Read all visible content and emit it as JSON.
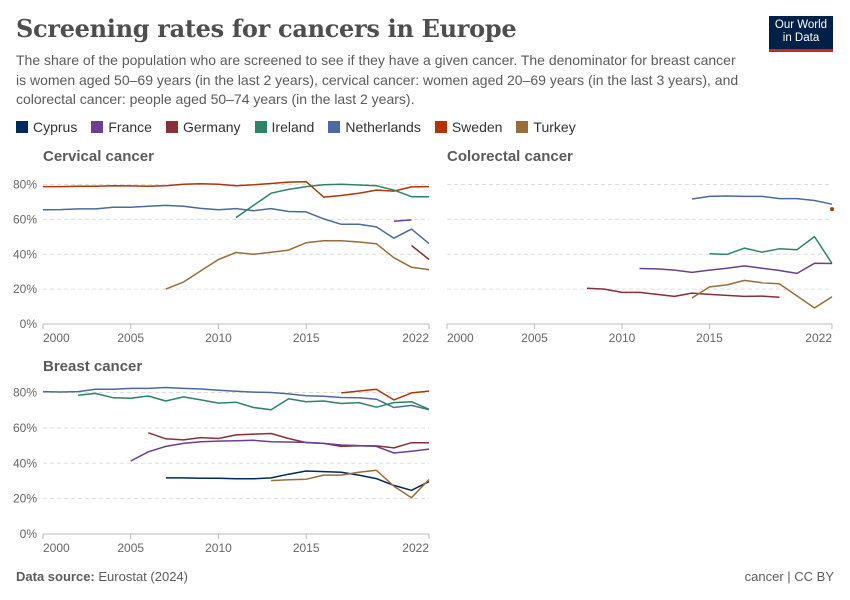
{
  "header": {
    "title": "Screening rates for cancers in Europe",
    "subtitle": "The share of the population who are screened to see if they have a given cancer. The denominator for breast cancer is women aged 50–69 years (in the last 2 years), cervical cancer: women aged 20–69 years (in the last 3 years), and colorectal cancer: people aged 50–74 years (in the last 2 years).",
    "logo": "Our World in Data"
  },
  "legend": [
    {
      "name": "Cyprus",
      "color": "#00295b"
    },
    {
      "name": "France",
      "color": "#6d3e91"
    },
    {
      "name": "Germany",
      "color": "#883039"
    },
    {
      "name": "Ireland",
      "color": "#2c8465"
    },
    {
      "name": "Netherlands",
      "color": "#4c6a9c"
    },
    {
      "name": "Sweden",
      "color": "#b13507"
    },
    {
      "name": "Turkey",
      "color": "#996d39"
    }
  ],
  "footer": {
    "source_label": "Data source:",
    "source": "Eurostat (2024)",
    "license": "cancer | CC BY"
  },
  "chart_data": [
    {
      "type": "line",
      "title": "Cervical cancer",
      "xlim": [
        2000,
        2022
      ],
      "ylim": [
        0,
        80
      ],
      "xticks": [
        "2000",
        "2005",
        "2010",
        "2015",
        "2022"
      ],
      "yticks": [
        "0%",
        "20%",
        "40%",
        "60%",
        "80%"
      ],
      "grid": true,
      "series": [
        {
          "name": "Sweden",
          "x": [
            2000,
            2001,
            2002,
            2003,
            2004,
            2005,
            2006,
            2007,
            2008,
            2009,
            2010,
            2011,
            2012,
            2013,
            2014,
            2015,
            2016,
            2017,
            2018,
            2019,
            2020,
            2021,
            2022
          ],
          "values": [
            78.8,
            78.8,
            79,
            79,
            79.3,
            79.2,
            79,
            79.3,
            80.2,
            80.4,
            80.2,
            79.3,
            79.8,
            80.6,
            81.4,
            81.6,
            72.8,
            73.7,
            75,
            76.8,
            76.2,
            78.6,
            78.8
          ]
        },
        {
          "name": "Netherlands",
          "x": [
            2000,
            2001,
            2002,
            2003,
            2004,
            2005,
            2006,
            2007,
            2008,
            2009,
            2010,
            2011,
            2012,
            2013,
            2014,
            2015,
            2016,
            2017,
            2018,
            2019,
            2020,
            2021,
            2022
          ],
          "values": [
            65.5,
            65.6,
            66,
            66,
            67,
            67,
            67.5,
            68,
            67.5,
            66.3,
            65.5,
            66.2,
            65,
            66.2,
            64.5,
            64.3,
            60.3,
            57.2,
            57.2,
            55.7,
            49.2,
            54.4,
            46.1
          ]
        },
        {
          "name": "Ireland",
          "x": [
            2011,
            2012,
            2013,
            2014,
            2015,
            2016,
            2017,
            2018,
            2019,
            2020,
            2021,
            2022
          ],
          "values": [
            61,
            68,
            75,
            77.2,
            78.8,
            79.8,
            80.2,
            79.7,
            79.3,
            76.8,
            73,
            73
          ]
        },
        {
          "name": "France",
          "x": [
            2020,
            2021
          ],
          "values": [
            58.9,
            59.7
          ]
        },
        {
          "name": "Germany",
          "x": [
            2021,
            2022
          ],
          "values": [
            45,
            37
          ]
        },
        {
          "name": "Turkey",
          "x": [
            2007,
            2008,
            2009,
            2010,
            2011,
            2012,
            2013,
            2014,
            2015,
            2016,
            2017,
            2018,
            2019,
            2020,
            2021,
            2022
          ],
          "values": [
            20,
            24,
            30.5,
            37,
            41,
            40,
            41.2,
            42.4,
            46.6,
            47.7,
            47.7,
            47,
            46,
            38,
            32.5,
            31.2
          ]
        }
      ]
    },
    {
      "type": "line",
      "title": "Colorectal cancer",
      "xlim": [
        2000,
        2022
      ],
      "ylim": [
        0,
        80
      ],
      "xticks": [
        "2000",
        "2005",
        "2010",
        "2015",
        "2022"
      ],
      "grid": true,
      "series": [
        {
          "name": "Netherlands",
          "x": [
            2014,
            2015,
            2016,
            2017,
            2018,
            2019,
            2020,
            2021,
            2022
          ],
          "values": [
            71.7,
            73.2,
            73.4,
            73.2,
            73.2,
            71.9,
            71.9,
            70.8,
            68.7
          ]
        },
        {
          "name": "Sweden",
          "x": [
            2022
          ],
          "values": [
            65.9
          ]
        },
        {
          "name": "Ireland",
          "x": [
            2015,
            2016,
            2017,
            2018,
            2019,
            2020,
            2021,
            2022
          ],
          "values": [
            40.3,
            39.9,
            43.5,
            41.2,
            43.1,
            42.6,
            50.1,
            34.7
          ]
        },
        {
          "name": "France",
          "x": [
            2011,
            2012,
            2013,
            2014,
            2015,
            2016,
            2017,
            2018,
            2019,
            2020,
            2021,
            2022
          ],
          "values": [
            31.8,
            31.6,
            30.9,
            29.6,
            30.9,
            32,
            33.3,
            32,
            30.7,
            29,
            34.8,
            34.7
          ]
        },
        {
          "name": "Germany",
          "x": [
            2008,
            2009,
            2010,
            2011,
            2012,
            2013,
            2014,
            2015,
            2016,
            2017,
            2018,
            2019
          ],
          "values": [
            20.5,
            20,
            18.1,
            18.1,
            17,
            15.8,
            17.7,
            17,
            16.4,
            15.8,
            16,
            15.3
          ]
        },
        {
          "name": "Turkey",
          "x": [
            2014,
            2015,
            2016,
            2017,
            2018,
            2019,
            2021,
            2022
          ],
          "values": [
            14.9,
            21.3,
            22.4,
            25,
            23.7,
            23,
            9.2,
            15.6
          ]
        }
      ]
    },
    {
      "type": "line",
      "title": "Breast cancer",
      "xlim": [
        2000,
        2022
      ],
      "ylim": [
        0,
        80
      ],
      "xticks": [
        "2000",
        "2005",
        "2010",
        "2015",
        "2022"
      ],
      "yticks": [
        "0%",
        "20%",
        "40%",
        "60%",
        "80%"
      ],
      "grid": true,
      "series": [
        {
          "name": "Netherlands",
          "x": [
            2000,
            2001,
            2002,
            2003,
            2004,
            2005,
            2006,
            2007,
            2008,
            2009,
            2010,
            2011,
            2012,
            2013,
            2014,
            2015,
            2016,
            2017,
            2018,
            2019,
            2020,
            2021,
            2022
          ],
          "values": [
            80.5,
            80.3,
            80.5,
            81.8,
            81.8,
            82.3,
            82.3,
            82.8,
            82.3,
            82,
            81.3,
            80.7,
            80.2,
            80,
            79.2,
            78.2,
            77.9,
            77.2,
            77,
            76.2,
            71.5,
            72.7,
            70.3
          ]
        },
        {
          "name": "Ireland",
          "x": [
            2002,
            2003,
            2004,
            2005,
            2006,
            2007,
            2008,
            2009,
            2010,
            2011,
            2012,
            2013,
            2014,
            2015,
            2016,
            2017,
            2018,
            2019,
            2020,
            2021,
            2022
          ],
          "values": [
            78.5,
            79.5,
            77,
            76.8,
            78,
            75.2,
            77.5,
            75.8,
            74,
            74.5,
            71.5,
            70.2,
            76.5,
            74.8,
            75.2,
            73.8,
            74.3,
            71.7,
            74.3,
            74.8,
            70.5
          ]
        },
        {
          "name": "Sweden",
          "x": [
            2017,
            2019,
            2020,
            2021,
            2022
          ],
          "values": [
            79.8,
            81.8,
            75.8,
            79.8,
            80.8
          ]
        },
        {
          "name": "Germany",
          "x": [
            2006,
            2007,
            2008,
            2009,
            2010,
            2011,
            2012,
            2013,
            2014,
            2015,
            2016,
            2017,
            2018,
            2019,
            2020,
            2021,
            2022
          ],
          "values": [
            57.2,
            53.8,
            53.2,
            54.5,
            54,
            56,
            56.5,
            56.8,
            54,
            51.7,
            51.2,
            49.5,
            49.9,
            49.8,
            48.7,
            51.6,
            51.6
          ]
        },
        {
          "name": "France",
          "x": [
            2005,
            2006,
            2007,
            2008,
            2009,
            2010,
            2011,
            2012,
            2013,
            2014,
            2015,
            2016,
            2017,
            2018,
            2019,
            2020,
            2021,
            2022
          ],
          "values": [
            41.3,
            46.5,
            49.5,
            51.2,
            52.2,
            52.5,
            52.7,
            53,
            52.2,
            52,
            51.8,
            51.2,
            50.3,
            50,
            49.5,
            45.8,
            46.8,
            48
          ]
        },
        {
          "name": "Cyprus",
          "x": [
            2007,
            2008,
            2009,
            2010,
            2011,
            2012,
            2013,
            2014,
            2015,
            2016,
            2017,
            2018,
            2019,
            2020,
            2021,
            2022
          ],
          "values": [
            31.7,
            31.7,
            31.5,
            31.5,
            31.2,
            31.2,
            31.7,
            33.8,
            35.6,
            35.3,
            34.9,
            33.3,
            31.3,
            27.5,
            24.7,
            29.6
          ]
        },
        {
          "name": "Turkey",
          "x": [
            2013,
            2014,
            2015,
            2016,
            2017,
            2018,
            2019,
            2020,
            2021,
            2022
          ],
          "values": [
            30.2,
            30.7,
            31,
            33.3,
            33.3,
            34.9,
            36,
            27,
            20.5,
            30.8
          ]
        }
      ]
    }
  ]
}
